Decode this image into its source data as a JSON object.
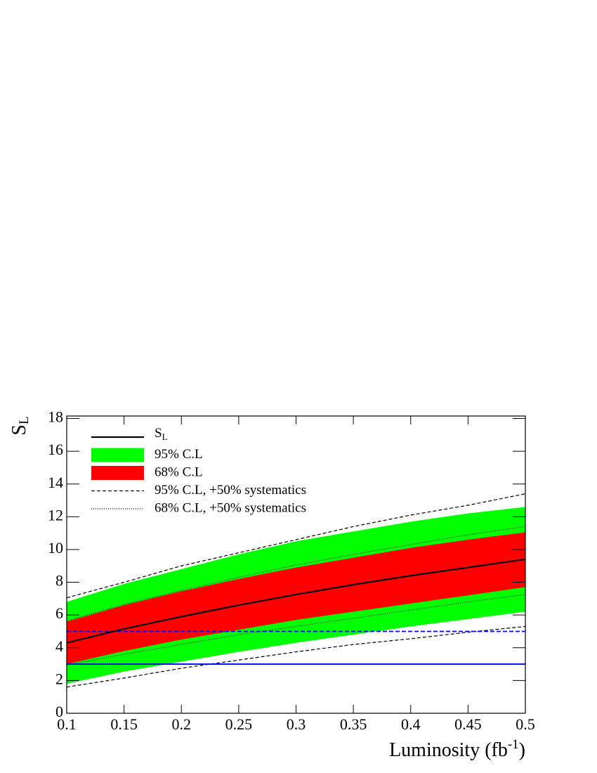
{
  "chart_data": {
    "type": "band",
    "ylabel": "S",
    "ylabel_sub": "L",
    "xlabel": "Luminosity (fb",
    "xlabel_sup": "-1",
    "xlabel_end": ")",
    "x": [
      0.1,
      0.15,
      0.2,
      0.25,
      0.3,
      0.35,
      0.4,
      0.45,
      0.5
    ],
    "xlim": [
      0.1,
      0.5
    ],
    "ylim": [
      0,
      18.15
    ],
    "xticks": [
      0.1,
      0.15,
      0.2,
      0.25,
      0.3,
      0.35,
      0.4,
      0.45,
      0.5
    ],
    "yticks": [
      0,
      2,
      4,
      6,
      8,
      10,
      12,
      14,
      16,
      18
    ],
    "bands": [
      {
        "name": "95% C.L",
        "color": "#00ff00",
        "lower": [
          1.8,
          2.55,
          3.15,
          3.75,
          4.3,
          4.8,
          5.3,
          5.75,
          6.2
        ],
        "upper": [
          6.8,
          7.9,
          8.8,
          9.7,
          10.5,
          11.1,
          11.7,
          12.2,
          12.6
        ]
      },
      {
        "name": "68% C.L",
        "color": "#ff0000",
        "lower": [
          3.0,
          3.8,
          4.5,
          5.1,
          5.7,
          6.2,
          6.7,
          7.2,
          7.7
        ],
        "upper": [
          5.6,
          6.6,
          7.45,
          8.2,
          8.9,
          9.5,
          10.1,
          10.6,
          11.05
        ]
      }
    ],
    "series": [
      {
        "name": "S",
        "name_sub": "L",
        "color": "#000000",
        "values": [
          4.3,
          5.15,
          5.9,
          6.6,
          7.25,
          7.85,
          8.4,
          8.9,
          9.4
        ]
      }
    ],
    "limits": [
      {
        "name": "95% C.L, +50% systematics",
        "color": "#000000",
        "dash": "5,3",
        "lower": [
          1.6,
          2.15,
          2.75,
          3.25,
          3.75,
          4.2,
          4.55,
          4.95,
          5.3
        ],
        "upper": [
          7.05,
          8.0,
          9.0,
          9.8,
          10.6,
          11.4,
          12.1,
          12.7,
          13.4
        ]
      },
      {
        "name": "68% C.L, +50% systematics",
        "color": "#000000",
        "dash": "1,2",
        "lower": [
          2.95,
          3.6,
          4.2,
          4.8,
          5.3,
          5.8,
          6.3,
          6.8,
          7.25
        ],
        "upper": [
          5.65,
          6.65,
          7.5,
          8.3,
          9.05,
          9.7,
          10.3,
          10.9,
          11.4
        ]
      }
    ],
    "hlines": [
      {
        "value": 5,
        "color": "#0000ff",
        "dash": "6,3"
      },
      {
        "value": 3,
        "color": "#0000ff",
        "dash": "none"
      }
    ]
  }
}
